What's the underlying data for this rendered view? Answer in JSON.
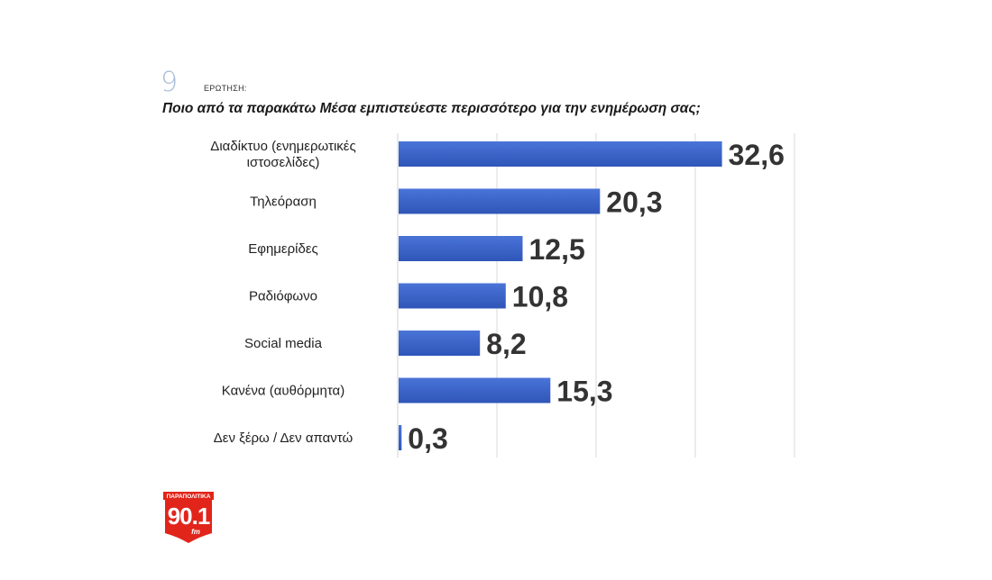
{
  "question": {
    "number": "9",
    "label": "ΕΡΩΤΗΣΗ:",
    "text": "Ποιο από τα παρακάτω Μέσα εμπιστεύεστε περισσότερο για την ενημέρωση σας;"
  },
  "chart_data": {
    "type": "bar",
    "orientation": "horizontal",
    "title": "Ποιο από τα παρακάτω Μέσα εμπιστεύεστε περισσότερο για την ενημέρωση σας;",
    "categories": [
      [
        "Διαδίκτυο (ενημερωτικές",
        "ιστοσελίδες)"
      ],
      [
        "Τηλεόραση"
      ],
      [
        "Εφημερίδες"
      ],
      [
        "Ραδιόφωνο"
      ],
      [
        "Social media"
      ],
      [
        "Κανένα (αυθόρμητα)"
      ],
      [
        "Δεν ξέρω / Δεν απαντώ"
      ]
    ],
    "values": [
      32.6,
      20.3,
      12.5,
      10.8,
      8.2,
      15.3,
      0.3
    ],
    "value_labels": [
      "32,6",
      "20,3",
      "12,5",
      "10,8",
      "8,2",
      "15,3",
      "0,3"
    ],
    "xlim": [
      0,
      40
    ],
    "grid": true,
    "bar_color": "#3a62c9"
  },
  "logo": {
    "top_text": "ΠΑΡΑΠΟΛΙΤΙΚΑ",
    "number": "90.1",
    "suffix": "fm",
    "color": "#e1251b"
  }
}
